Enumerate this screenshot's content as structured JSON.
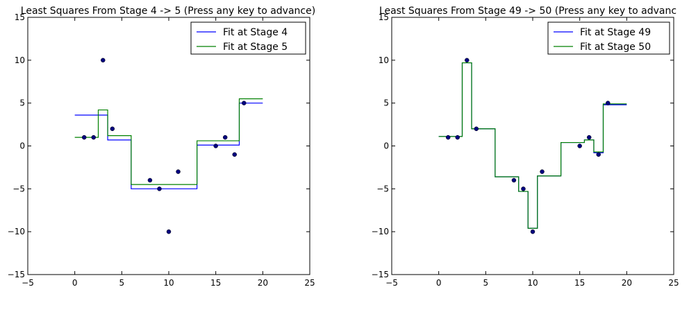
{
  "chart_data": [
    {
      "type": "line",
      "title": "Least Squares From Stage 4 -> 5 (Press any key to advance)",
      "xlabel": "",
      "ylabel": "",
      "xlim": [
        -5,
        25
      ],
      "ylim": [
        -15,
        15
      ],
      "xticks": [
        -5,
        0,
        5,
        10,
        15,
        20,
        25
      ],
      "yticks": [
        -15,
        -10,
        -5,
        0,
        5,
        10,
        15
      ],
      "xtick_labels": [
        "−5",
        "0",
        "5",
        "10",
        "15",
        "20",
        "25"
      ],
      "ytick_labels": [
        "−15",
        "−10",
        "−5",
        "0",
        "5",
        "10",
        "15"
      ],
      "legend_position": "top-right",
      "grid": false,
      "scatter": {
        "x": [
          1,
          2,
          3,
          4,
          8,
          9,
          10,
          11,
          15,
          16,
          17,
          18
        ],
        "y": [
          1,
          1,
          10,
          2,
          -4,
          -5,
          -10,
          -3,
          0,
          1,
          -1,
          5
        ],
        "color": "#00007f"
      },
      "series": [
        {
          "name": "Fit at Stage 4",
          "color": "#0000ff",
          "steps": [
            {
              "x0": 0,
              "x1": 3.5,
              "y": 3.6
            },
            {
              "x0": 3.5,
              "x1": 6,
              "y": 0.7
            },
            {
              "x0": 6,
              "x1": 13,
              "y": -5
            },
            {
              "x0": 13,
              "x1": 17.5,
              "y": 0.1
            },
            {
              "x0": 17.5,
              "x1": 20,
              "y": 5
            }
          ]
        },
        {
          "name": "Fit at Stage 5",
          "color": "#008000",
          "steps": [
            {
              "x0": 0,
              "x1": 2.5,
              "y": 1
            },
            {
              "x0": 2.5,
              "x1": 3.5,
              "y": 4.2
            },
            {
              "x0": 3.5,
              "x1": 6,
              "y": 1.2
            },
            {
              "x0": 6,
              "x1": 13,
              "y": -4.5
            },
            {
              "x0": 13,
              "x1": 17.5,
              "y": 0.6
            },
            {
              "x0": 17.5,
              "x1": 20,
              "y": 5.5
            }
          ]
        }
      ]
    },
    {
      "type": "line",
      "title": "Least Squares From Stage 49 -> 50 (Press any key to advanc",
      "xlabel": "",
      "ylabel": "",
      "xlim": [
        -5,
        25
      ],
      "ylim": [
        -15,
        15
      ],
      "xticks": [
        -5,
        0,
        5,
        10,
        15,
        20,
        25
      ],
      "yticks": [
        -15,
        -10,
        -5,
        0,
        5,
        10,
        15
      ],
      "xtick_labels": [
        "−5",
        "0",
        "5",
        "10",
        "15",
        "20",
        "25"
      ],
      "ytick_labels": [
        "−15",
        "−10",
        "−5",
        "0",
        "5",
        "10",
        "15"
      ],
      "legend_position": "top-right",
      "grid": false,
      "scatter": {
        "x": [
          1,
          2,
          3,
          4,
          8,
          9,
          10,
          11,
          15,
          16,
          17,
          18
        ],
        "y": [
          1,
          1,
          10,
          2,
          -4,
          -5,
          -10,
          -3,
          0,
          1,
          -1,
          5
        ],
        "color": "#00007f"
      },
      "series": [
        {
          "name": "Fit at Stage 49",
          "color": "#0000ff",
          "steps": [
            {
              "x0": 0,
              "x1": 2.5,
              "y": 1.1
            },
            {
              "x0": 2.5,
              "x1": 3.5,
              "y": 9.7
            },
            {
              "x0": 3.5,
              "x1": 6,
              "y": 2
            },
            {
              "x0": 6,
              "x1": 8.5,
              "y": -3.6
            },
            {
              "x0": 8.5,
              "x1": 9.5,
              "y": -5.3
            },
            {
              "x0": 9.5,
              "x1": 10.5,
              "y": -9.6
            },
            {
              "x0": 10.5,
              "x1": 13,
              "y": -3.5
            },
            {
              "x0": 13,
              "x1": 15.5,
              "y": 0.4
            },
            {
              "x0": 15.5,
              "x1": 16.5,
              "y": 0.7
            },
            {
              "x0": 16.5,
              "x1": 17.5,
              "y": -0.8
            },
            {
              "x0": 17.5,
              "x1": 20,
              "y": 4.8
            }
          ]
        },
        {
          "name": "Fit at Stage 50",
          "color": "#008000",
          "steps": [
            {
              "x0": 0,
              "x1": 2.5,
              "y": 1.1
            },
            {
              "x0": 2.5,
              "x1": 3.5,
              "y": 9.7
            },
            {
              "x0": 3.5,
              "x1": 6,
              "y": 2
            },
            {
              "x0": 6,
              "x1": 8.5,
              "y": -3.6
            },
            {
              "x0": 8.5,
              "x1": 9.5,
              "y": -5.3
            },
            {
              "x0": 9.5,
              "x1": 10.5,
              "y": -9.6
            },
            {
              "x0": 10.5,
              "x1": 13,
              "y": -3.5
            },
            {
              "x0": 13,
              "x1": 15.5,
              "y": 0.4
            },
            {
              "x0": 15.5,
              "x1": 16.5,
              "y": 0.7
            },
            {
              "x0": 16.5,
              "x1": 17.5,
              "y": -0.7
            },
            {
              "x0": 17.5,
              "x1": 20,
              "y": 4.9
            }
          ]
        }
      ]
    }
  ]
}
